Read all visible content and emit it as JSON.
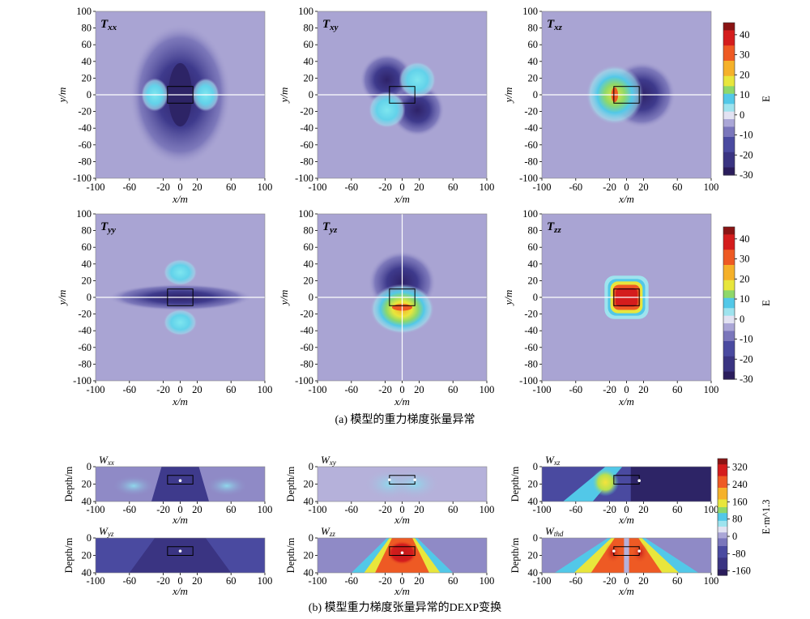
{
  "colormap": [
    [
      -30,
      "#2b1d5c"
    ],
    [
      -22,
      "#3a3482"
    ],
    [
      -15,
      "#4a4aa0"
    ],
    [
      -8,
      "#7a76bb"
    ],
    [
      -3,
      "#aaa6d6"
    ],
    [
      0,
      "#e2e2f2"
    ],
    [
      3,
      "#9ee3ee"
    ],
    [
      8,
      "#52c8e8"
    ],
    [
      12,
      "#8ed86a"
    ],
    [
      17,
      "#e8e63c"
    ],
    [
      23,
      "#f5b12a"
    ],
    [
      30,
      "#ee5a24"
    ],
    [
      38,
      "#d41d1d"
    ],
    [
      46,
      "#8a1414"
    ]
  ],
  "background_color": "#a9a4d3",
  "section_a": {
    "caption": "(a) 模型的重力梯度张量异常",
    "xlabel": "x/m",
    "ylabel": "y/m",
    "xticks": [
      -100,
      -60,
      -20,
      0,
      20,
      60,
      100
    ],
    "yticks": [
      100,
      80,
      60,
      40,
      20,
      0,
      -20,
      -40,
      -60,
      -80,
      -100
    ],
    "colorbar": {
      "label": "E",
      "ticks": [
        40,
        30,
        20,
        10,
        0,
        -10,
        -20,
        -30
      ]
    }
  },
  "section_b": {
    "caption": "(b) 模型重力梯度张量异常的DEXP变换",
    "xlabel": "x/m",
    "ylabel": "Depth/m",
    "xticks": [
      -100,
      -60,
      -20,
      0,
      20,
      60,
      100
    ],
    "yticks": [
      0,
      20,
      40
    ],
    "colorbar": {
      "label": "E·m^1.3",
      "ticks": [
        320,
        240,
        160,
        80,
        0,
        -80,
        -160
      ]
    }
  },
  "chart_data": [
    {
      "type": "heatmap",
      "title": "Txx",
      "main": "T",
      "sub": "xx",
      "xlim": [
        -100,
        100
      ],
      "ylim": [
        -100,
        100
      ],
      "value_range": [
        -30,
        46
      ]
    },
    {
      "type": "heatmap",
      "title": "Txy",
      "main": "T",
      "sub": "xy",
      "xlim": [
        -100,
        100
      ],
      "ylim": [
        -100,
        100
      ],
      "value_range": [
        -30,
        46
      ]
    },
    {
      "type": "heatmap",
      "title": "Txz",
      "main": "T",
      "sub": "xz",
      "xlim": [
        -100,
        100
      ],
      "ylim": [
        -100,
        100
      ],
      "value_range": [
        -30,
        46
      ]
    },
    {
      "type": "heatmap",
      "title": "Tyy",
      "main": "T",
      "sub": "yy",
      "xlim": [
        -100,
        100
      ],
      "ylim": [
        -100,
        100
      ],
      "value_range": [
        -30,
        46
      ]
    },
    {
      "type": "heatmap",
      "title": "Tyz",
      "main": "T",
      "sub": "yz",
      "xlim": [
        -100,
        100
      ],
      "ylim": [
        -100,
        100
      ],
      "value_range": [
        -30,
        46
      ]
    },
    {
      "type": "heatmap",
      "title": "Tzz",
      "main": "T",
      "sub": "zz",
      "xlim": [
        -100,
        100
      ],
      "ylim": [
        -100,
        100
      ],
      "value_range": [
        -30,
        46
      ]
    },
    {
      "type": "heatmap",
      "title": "Wxx",
      "main": "W",
      "sub": "xx",
      "xlim": [
        -100,
        100
      ],
      "ylim": [
        0,
        40
      ],
      "value_range": [
        -180,
        360
      ],
      "estimated_source_points": [
        [
          0,
          16
        ]
      ]
    },
    {
      "type": "heatmap",
      "title": "Wxy",
      "main": "W",
      "sub": "xy",
      "xlim": [
        -100,
        100
      ],
      "ylim": [
        0,
        40
      ],
      "value_range": [
        -180,
        360
      ],
      "estimated_source_points": [
        [
          -15,
          15
        ],
        [
          15,
          15
        ]
      ]
    },
    {
      "type": "heatmap",
      "title": "Wxz",
      "main": "W",
      "sub": "xz",
      "xlim": [
        -100,
        100
      ],
      "ylim": [
        0,
        40
      ],
      "value_range": [
        -180,
        360
      ],
      "estimated_source_points": [
        [
          15,
          16
        ]
      ]
    },
    {
      "type": "heatmap",
      "title": "Wyz",
      "main": "W",
      "sub": "yz",
      "xlim": [
        -100,
        100
      ],
      "ylim": [
        0,
        40
      ],
      "value_range": [
        -180,
        360
      ],
      "estimated_source_points": [
        [
          0,
          15
        ]
      ]
    },
    {
      "type": "heatmap",
      "title": "Wzz",
      "main": "W",
      "sub": "zz",
      "xlim": [
        -100,
        100
      ],
      "ylim": [
        0,
        40
      ],
      "value_range": [
        -180,
        360
      ],
      "estimated_source_points": [
        [
          0,
          17
        ]
      ]
    },
    {
      "type": "heatmap",
      "title": "Wthd",
      "main": "W",
      "sub": "thd",
      "xlim": [
        -100,
        100
      ],
      "ylim": [
        0,
        40
      ],
      "value_range": [
        -180,
        360
      ],
      "estimated_source_points": [
        [
          -15,
          15
        ],
        [
          15,
          15
        ]
      ]
    }
  ]
}
